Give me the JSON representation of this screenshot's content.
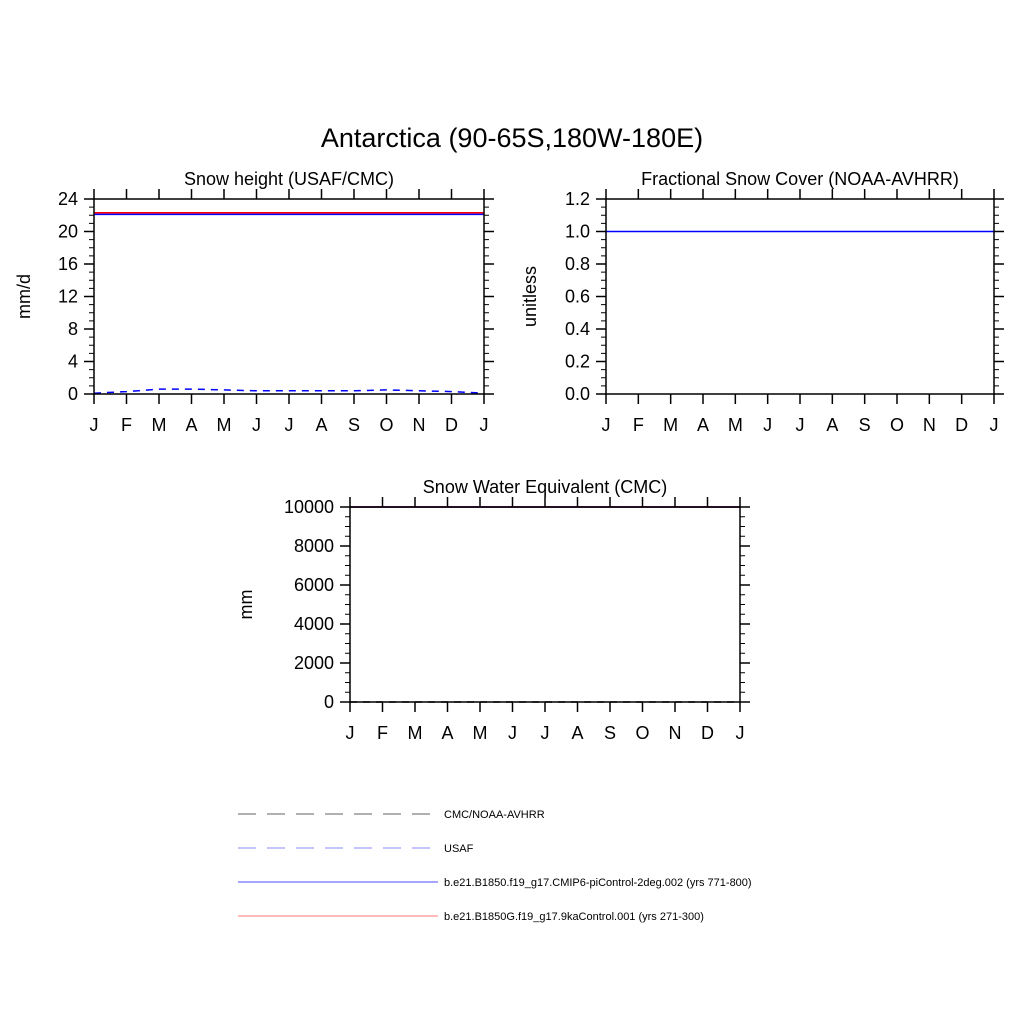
{
  "title": "Antarctica (90-65S,180W-180E)",
  "months": [
    "J",
    "F",
    "M",
    "A",
    "M",
    "J",
    "J",
    "A",
    "S",
    "O",
    "N",
    "D",
    "J"
  ],
  "colors": {
    "obs": "#000000",
    "usaf": "#0000ff",
    "ctrl": "#0000ff",
    "ka9": "#ff0000"
  },
  "chart_data": [
    {
      "type": "line",
      "title": "Snow height (USAF/CMC)",
      "ylabel": "mm/d",
      "ylim": [
        0,
        24
      ],
      "yticks": [
        0,
        4,
        8,
        12,
        16,
        20,
        24
      ],
      "ytick_labels": [
        "0",
        "4",
        "8",
        "12",
        "16",
        "20",
        "24"
      ],
      "minor_step": 1,
      "series": [
        {
          "name": "USAF",
          "style": "dash",
          "color": "#0000ff",
          "values": [
            0.1,
            0.3,
            0.6,
            0.6,
            0.5,
            0.4,
            0.4,
            0.4,
            0.4,
            0.5,
            0.4,
            0.3,
            0.1
          ]
        },
        {
          "name": "b.e21.B1850.f19_g17.CMIP6-piControl-2deg.002 (yrs 771-800)",
          "style": "solid",
          "color": "#0000ff",
          "values": [
            22.1,
            22.1,
            22.1,
            22.1,
            22.1,
            22.1,
            22.1,
            22.1,
            22.1,
            22.1,
            22.1,
            22.1,
            22.1
          ]
        },
        {
          "name": "b.e21.B1850G.f19_g17.9kaControl.001 (yrs 271-300)",
          "style": "solid",
          "color": "#ff0000",
          "values": [
            22.3,
            22.3,
            22.3,
            22.3,
            22.3,
            22.3,
            22.3,
            22.3,
            22.3,
            22.3,
            22.3,
            22.3,
            22.3
          ]
        }
      ]
    },
    {
      "type": "line",
      "title": "Fractional Snow Cover (NOAA-AVHRR)",
      "ylabel": "unitless",
      "ylim": [
        0,
        1.2
      ],
      "yticks": [
        0,
        0.2,
        0.4,
        0.6,
        0.8,
        1.0,
        1.2
      ],
      "ytick_labels": [
        "0.0",
        "0.2",
        "0.4",
        "0.6",
        "0.8",
        "1.0",
        "1.2"
      ],
      "minor_step": 0.05,
      "series": [
        {
          "name": "b.e21.B1850.f19_g17.CMIP6-piControl-2deg.002 (yrs 771-800)",
          "style": "solid",
          "color": "#0000ff",
          "values": [
            1,
            1,
            1,
            1,
            1,
            1,
            1,
            1,
            1,
            1,
            1,
            1,
            1
          ]
        }
      ]
    },
    {
      "type": "line",
      "title": "Snow Water Equivalent (CMC)",
      "ylabel": "mm",
      "ylim": [
        0,
        10000
      ],
      "yticks": [
        0,
        2000,
        4000,
        6000,
        8000,
        10000
      ],
      "ytick_labels": [
        "0",
        "2000",
        "4000",
        "6000",
        "8000",
        "10000"
      ],
      "minor_step": 500,
      "series": [
        {
          "name": "CMC/NOAA-AVHRR",
          "style": "dash",
          "color": "#000000",
          "values": [
            0,
            0,
            0,
            0,
            0,
            0,
            0,
            0,
            0,
            0,
            0,
            0,
            0
          ]
        },
        {
          "name": "b.e21.B1850.f19_g17.CMIP6-piControl-2deg.002 (yrs 771-800)",
          "style": "solid",
          "color": "#0000ff",
          "values": [
            10000,
            10000,
            10000,
            10000,
            10000,
            10000,
            10000,
            10000,
            10000,
            10000,
            10000,
            10000,
            10000
          ]
        },
        {
          "name": "b.e21.B1850G.f19_g17.9kaControl.001 (yrs 271-300)",
          "style": "solid",
          "color": "#8b0000",
          "values": [
            10000,
            10000,
            10000,
            10000,
            10000,
            10000,
            10000,
            10000,
            10000,
            10000,
            10000,
            10000,
            10000
          ]
        }
      ]
    }
  ],
  "legend": [
    {
      "label": "CMC/NOAA-AVHRR",
      "style": "dash",
      "color": "#808080"
    },
    {
      "label": "USAF",
      "style": "dash",
      "color": "#a0a0ff"
    },
    {
      "label": "b.e21.B1850.f19_g17.CMIP6-piControl-2deg.002 (yrs 771-800)",
      "style": "solid",
      "color": "#7070ff"
    },
    {
      "label": "b.e21.B1850G.f19_g17.9kaControl.001 (yrs 271-300)",
      "style": "solid",
      "color": "#ff9090"
    }
  ]
}
